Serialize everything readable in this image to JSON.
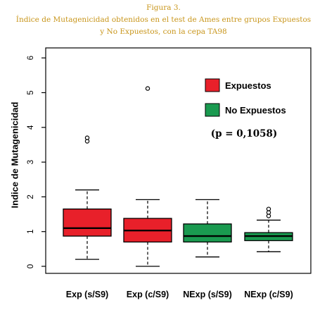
{
  "caption": {
    "line1": "Figura 3.",
    "line2": "Índice de Mutagenicidad obtenidos en el test de Ames entre grupos Expuestos",
    "line3": "y No Expuestos, con la cepa TA98"
  },
  "colors": {
    "caption": "#c8951a",
    "expuestos": "#e8202a",
    "no_expuestos": "#1a9a50",
    "axis": "#000000"
  },
  "chart_data": {
    "type": "boxplot",
    "ylabel": "Indice de Mutagenicidad",
    "ylim": [
      0,
      6
    ],
    "yticks": [
      "0",
      "1",
      "2",
      "3",
      "4",
      "5",
      "6"
    ],
    "categories": [
      "Exp (s/S9)",
      "Exp (c/S9)",
      "NExp (s/S9)",
      "NExp (c/S9)"
    ],
    "boxes": [
      {
        "category": "Exp (s/S9)",
        "group": "Expuestos",
        "whisker_low": 0.2,
        "q1": 0.87,
        "median": 1.1,
        "q3": 1.65,
        "whisker_high": 2.2,
        "outliers": [
          3.6,
          3.7
        ]
      },
      {
        "category": "Exp (c/S9)",
        "group": "Expuestos",
        "whisker_low": 0.0,
        "q1": 0.7,
        "median": 1.03,
        "q3": 1.38,
        "whisker_high": 1.92,
        "outliers": [
          5.12
        ]
      },
      {
        "category": "NExp (s/S9)",
        "group": "No Expuestos",
        "whisker_low": 0.27,
        "q1": 0.7,
        "median": 0.87,
        "q3": 1.22,
        "whisker_high": 1.92,
        "outliers": []
      },
      {
        "category": "NExp (c/S9)",
        "group": "No Expuestos",
        "whisker_low": 0.42,
        "q1": 0.74,
        "median": 0.87,
        "q3": 0.97,
        "whisker_high": 1.33,
        "outliers": [
          1.45,
          1.55,
          1.65
        ]
      }
    ],
    "legend": {
      "position": "top-right",
      "entries": [
        {
          "label": "Expuestos",
          "color": "#e8202a"
        },
        {
          "label": "No Expuestos",
          "color": "#1a9a50"
        }
      ],
      "annotation": "(p = 0,1058)"
    }
  }
}
